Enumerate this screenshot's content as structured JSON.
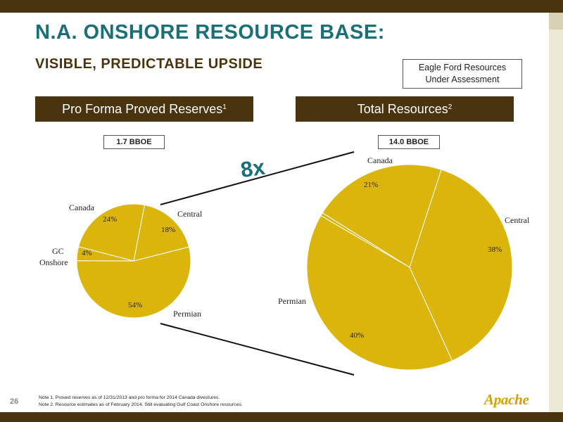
{
  "title": "N.A. ONSHORE RESOURCE BASE:",
  "subtitle": "VISIBLE, PREDICTABLE UPSIDE",
  "callout": {
    "line1": "Eagle Ford Resources",
    "line2": "Under Assessment"
  },
  "left_header": {
    "text": "Pro Forma Proved Reserves",
    "note": "1"
  },
  "right_header": {
    "text": "Total Resources",
    "note": "2"
  },
  "multiplier": "8x",
  "page_number": "26",
  "notes": [
    "Note 1. Proved reserves as of 12/31/2013 and pro forma for 2014 Canada divestures.",
    "Note 2. Resource estimates as of February 2014. Still evaluating Gulf Coast Onshore resources."
  ],
  "logo": "Apache",
  "colors": {
    "slice": "#dbb40c",
    "header": "#4a3410",
    "title": "#1a6f78"
  },
  "chart_data": [
    {
      "type": "pie",
      "title": "Pro Forma Proved Reserves",
      "total_label": "1.7 BBOE",
      "slices": [
        {
          "name": "Central",
          "value": 18,
          "label": "18%"
        },
        {
          "name": "Permian",
          "value": 54,
          "label": "54%"
        },
        {
          "name": "GC Onshore",
          "value": 4,
          "label": "4%"
        },
        {
          "name": "Canada",
          "value": 24,
          "label": "24%"
        }
      ]
    },
    {
      "type": "pie",
      "title": "Total Resources",
      "total_label": "14.0 BBOE",
      "slices": [
        {
          "name": "Central",
          "value": 38,
          "label": "38%"
        },
        {
          "name": "Permian",
          "value": 40,
          "label": "40%"
        },
        {
          "name": "GC Onshore",
          "value": 0.5,
          "label": ""
        },
        {
          "name": "Canada",
          "value": 21,
          "label": "21%"
        }
      ]
    }
  ]
}
